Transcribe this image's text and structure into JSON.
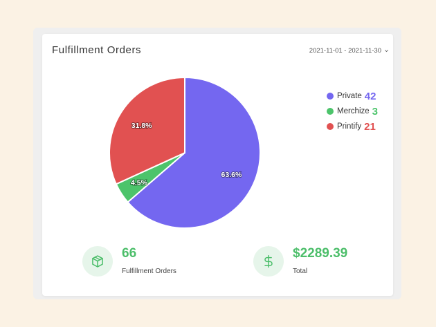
{
  "card": {
    "title": "Fulfillment Orders",
    "date_range": "2021-11-01 - 2021-11-30",
    "date_range_icon": "chevron-down-icon"
  },
  "chart_data": {
    "type": "pie",
    "categories": [
      "Private",
      "Merchize",
      "Printify"
    ],
    "values": [
      42,
      3,
      21
    ],
    "percent_labels": [
      "63.6%",
      "4.5%",
      "31.8%"
    ],
    "colors": [
      "#7467f0",
      "#4cc46b",
      "#e15151"
    ],
    "legend_position": "right"
  },
  "stats": [
    {
      "icon": "package-box-icon",
      "value": "66",
      "label": "Fulfillment Orders"
    },
    {
      "icon": "dollar-sign-icon",
      "value": "$2289.39",
      "label": "Total"
    }
  ]
}
